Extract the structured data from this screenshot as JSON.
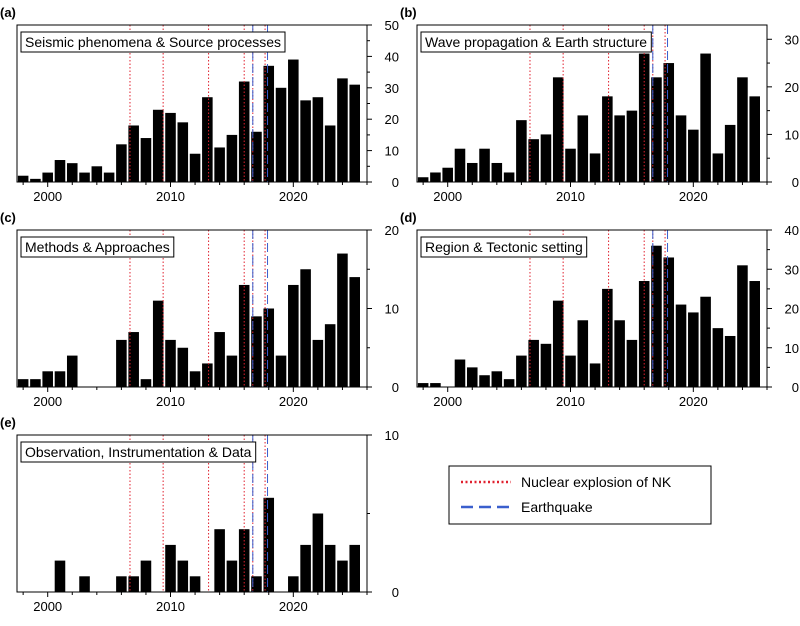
{
  "figure": {
    "legend": [
      {
        "label": "Nuclear explosion of NK",
        "color": "#e0202e",
        "style": "dotted"
      },
      {
        "label": "Earthquake",
        "color": "#3a5fcd",
        "style": "dashed"
      }
    ],
    "nuclear_years": [
      2006.7,
      2009.4,
      2013.1,
      2016.0,
      2016.7,
      2017.7
    ],
    "earthquake_years": [
      2016.7,
      2017.9
    ],
    "bar_color": "#000000"
  },
  "chart_data": [
    {
      "type": "bar",
      "panel": "(a)",
      "title": "Seismic phenomena & Source processes",
      "x": [
        1998,
        1999,
        2000,
        2001,
        2002,
        2003,
        2004,
        2005,
        2006,
        2007,
        2008,
        2009,
        2010,
        2011,
        2012,
        2013,
        2014,
        2015,
        2016,
        2017,
        2018,
        2019,
        2020,
        2021,
        2022,
        2023,
        2024,
        2025
      ],
      "values": [
        2,
        1,
        3,
        7,
        6,
        3,
        5,
        3,
        12,
        18,
        14,
        23,
        22,
        19,
        9,
        27,
        11,
        15,
        32,
        16,
        37,
        30,
        39,
        26,
        27,
        18,
        33,
        31
      ],
      "xlim": [
        1997.5,
        2026
      ],
      "ylim": [
        0,
        50
      ],
      "x_ticks": [
        2000,
        2010,
        2020
      ],
      "y_ticks": [
        0,
        10,
        20,
        30,
        40,
        50
      ],
      "y_tick_labels": [
        "0",
        "10",
        "20",
        "30",
        "40",
        "50"
      ],
      "x_tick_labels": [
        "2000",
        "2010",
        "2020"
      ]
    },
    {
      "type": "bar",
      "panel": "(b)",
      "title": "Wave propagation & Earth structure",
      "x": [
        1998,
        1999,
        2000,
        2001,
        2002,
        2003,
        2004,
        2005,
        2006,
        2007,
        2008,
        2009,
        2010,
        2011,
        2012,
        2013,
        2014,
        2015,
        2016,
        2017,
        2018,
        2019,
        2020,
        2021,
        2022,
        2023,
        2024,
        2025
      ],
      "values": [
        1,
        2,
        3,
        7,
        4,
        7,
        4,
        2,
        13,
        9,
        10,
        22,
        7,
        14,
        6,
        18,
        14,
        15,
        27,
        22,
        25,
        14,
        11,
        27,
        6,
        12,
        22,
        18
      ],
      "xlim": [
        1997.5,
        2026
      ],
      "ylim": [
        0,
        33
      ],
      "x_ticks": [
        2000,
        2010,
        2020
      ],
      "y_ticks": [
        0,
        10,
        20,
        30
      ],
      "y_tick_labels": [
        "0",
        "10",
        "20",
        "30"
      ],
      "x_tick_labels": [
        "2000",
        "2010",
        "2020"
      ]
    },
    {
      "type": "bar",
      "panel": "(c)",
      "title": "Methods & Approaches",
      "x": [
        1998,
        1999,
        2000,
        2001,
        2002,
        2003,
        2004,
        2005,
        2006,
        2007,
        2008,
        2009,
        2010,
        2011,
        2012,
        2013,
        2014,
        2015,
        2016,
        2017,
        2018,
        2019,
        2020,
        2021,
        2022,
        2023,
        2024,
        2025
      ],
      "values": [
        1,
        1,
        2,
        2,
        4,
        0,
        0,
        0,
        6,
        7,
        1,
        11,
        6,
        5,
        2,
        3,
        7,
        4,
        13,
        9,
        10,
        4,
        13,
        15,
        6,
        8,
        17,
        14
      ],
      "xlim": [
        1997.5,
        2026
      ],
      "ylim": [
        0,
        20
      ],
      "x_ticks": [
        2000,
        2010,
        2020
      ],
      "y_ticks": [
        0,
        10,
        20
      ],
      "y_tick_labels": [
        "0",
        "10",
        "20"
      ],
      "x_tick_labels": [
        "2000",
        "2010",
        "2020"
      ]
    },
    {
      "type": "bar",
      "panel": "(d)",
      "title": "Region & Tectonic setting",
      "x": [
        1998,
        1999,
        2000,
        2001,
        2002,
        2003,
        2004,
        2005,
        2006,
        2007,
        2008,
        2009,
        2010,
        2011,
        2012,
        2013,
        2014,
        2015,
        2016,
        2017,
        2018,
        2019,
        2020,
        2021,
        2022,
        2023,
        2024,
        2025
      ],
      "values": [
        1,
        1,
        0,
        7,
        5,
        3,
        4,
        2,
        8,
        12,
        11,
        22,
        8,
        17,
        6,
        25,
        17,
        12,
        27,
        36,
        33,
        21,
        19,
        23,
        15,
        13,
        31,
        27
      ],
      "xlim": [
        1997.5,
        2026
      ],
      "ylim": [
        0,
        40
      ],
      "x_ticks": [
        2000,
        2010,
        2020
      ],
      "y_ticks": [
        0,
        10,
        20,
        30,
        40
      ],
      "y_tick_labels": [
        "0",
        "10",
        "20",
        "30",
        "40"
      ],
      "x_tick_labels": [
        "2000",
        "2010",
        "2020"
      ]
    },
    {
      "type": "bar",
      "panel": "(e)",
      "title": "Observation, Instrumentation & Data",
      "x": [
        1998,
        1999,
        2000,
        2001,
        2002,
        2003,
        2004,
        2005,
        2006,
        2007,
        2008,
        2009,
        2010,
        2011,
        2012,
        2013,
        2014,
        2015,
        2016,
        2017,
        2018,
        2019,
        2020,
        2021,
        2022,
        2023,
        2024,
        2025
      ],
      "values": [
        0,
        0,
        0,
        2,
        0,
        1,
        0,
        0,
        1,
        1,
        2,
        0,
        3,
        2,
        1,
        0,
        4,
        2,
        4,
        1,
        6,
        0,
        1,
        3,
        5,
        3,
        2,
        3
      ],
      "xlim": [
        1997.5,
        2026
      ],
      "ylim": [
        0,
        10
      ],
      "x_ticks": [
        2000,
        2010,
        2020
      ],
      "y_ticks": [
        0,
        10
      ],
      "y_tick_labels": [
        "0",
        "10"
      ],
      "x_tick_labels": [
        "2000",
        "2010",
        "2020"
      ]
    }
  ]
}
